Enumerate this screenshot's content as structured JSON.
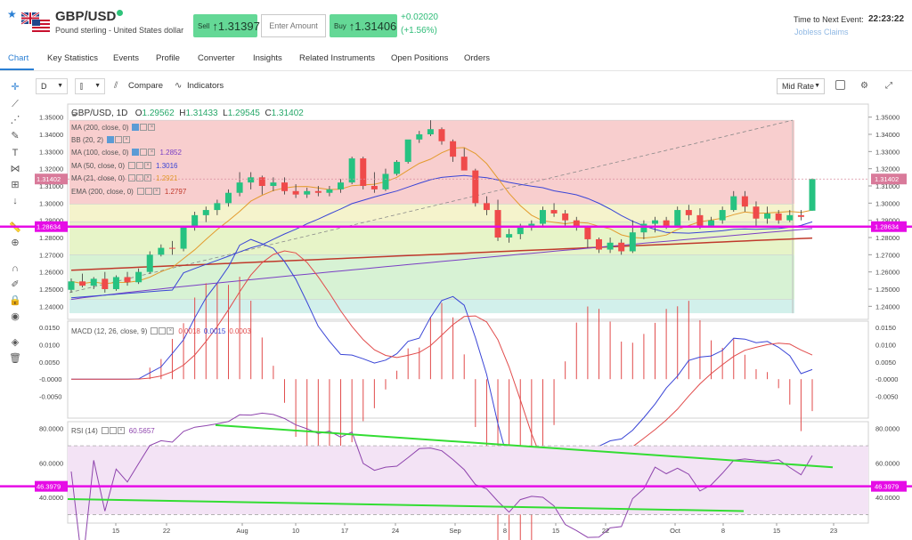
{
  "instrument": {
    "pair": "GBP/USD",
    "description": "Pound sterling - United States dollar",
    "sell_label": "Sell",
    "sell_price": "1.31397",
    "buy_label": "Buy",
    "buy_price": "1.31406",
    "amount_placeholder": "Enter Amount",
    "change_abs": "+0.02020",
    "change_pct": "(+1.56%)"
  },
  "event": {
    "label": "Time to Next Event:",
    "time": "22:23:22",
    "name": "Jobless Claims"
  },
  "tabs": [
    "Chart",
    "Key Statistics",
    "Events",
    "Profile",
    "Converter",
    "Insights",
    "Related Instruments",
    "Open Positions",
    "Orders"
  ],
  "toolbar": {
    "interval": "D",
    "compare_label": "Compare",
    "indicators_label": "Indicators",
    "price_type": "Mid Rate"
  },
  "price_pane": {
    "title": "GBP/USD, 1D",
    "open_label": "O",
    "open": "1.29562",
    "high_label": "H",
    "high": "1.31433",
    "low_label": "L",
    "low": "1.29545",
    "close_label": "C",
    "close": "1.31402",
    "last_price_label": "1.31402",
    "line_label": "1.28634",
    "indicators": [
      {
        "name": "MA (200, close, 0)",
        "value": ""
      },
      {
        "name": "BB (20, 2)",
        "value": ""
      },
      {
        "name": "MA (100, close, 0)",
        "value": "1.2852"
      },
      {
        "name": "MA (50, close, 0)",
        "value": "1.3016"
      },
      {
        "name": "MA (21, close, 0)",
        "value": "1.2921"
      },
      {
        "name": "EMA (200, close, 0)",
        "value": "1.2797"
      }
    ],
    "y_ticks": [
      "1.35000",
      "1.34000",
      "1.33000",
      "1.32000",
      "1.31000",
      "1.30000",
      "1.29000",
      "1.28000",
      "1.27000",
      "1.26000",
      "1.25000",
      "1.24000"
    ]
  },
  "macd_pane": {
    "name": "MACD (12, 26, close, 9)",
    "value1": "0.0018",
    "value2": "0.0015",
    "value3": "0.0003",
    "y_ticks": [
      "0.0150",
      "0.0100",
      "0.0050",
      "-0.0000",
      "-0.0050"
    ]
  },
  "rsi_pane": {
    "name": "RSI (14)",
    "value": "60.5657",
    "line_label": "46.3979",
    "y_ticks": [
      "80.0000",
      "60.0000",
      "40.0000"
    ]
  },
  "x_axis": [
    "15",
    "22",
    "Aug",
    "10",
    "17",
    "24",
    "Sep",
    "8",
    "15",
    "22",
    "Oct",
    "8",
    "15",
    "23"
  ],
  "colors": {
    "up": "#26c281",
    "down": "#ef4a4a",
    "accent": "#2a7fd4",
    "magenta": "#e60ce6",
    "trend": "#33dd33"
  },
  "chart_data": {
    "type": "candlestick",
    "candles": [
      [
        1.2496,
        1.2562,
        1.248,
        1.2545
      ],
      [
        1.2545,
        1.259,
        1.251,
        1.252
      ],
      [
        1.252,
        1.257,
        1.25,
        1.256
      ],
      [
        1.256,
        1.26,
        1.248,
        1.25
      ],
      [
        1.25,
        1.258,
        1.249,
        1.257
      ],
      [
        1.257,
        1.26,
        1.252,
        1.254
      ],
      [
        1.254,
        1.262,
        1.253,
        1.26
      ],
      [
        1.26,
        1.272,
        1.259,
        1.27
      ],
      [
        1.27,
        1.276,
        1.269,
        1.274
      ],
      [
        1.274,
        1.278,
        1.27,
        1.2735
      ],
      [
        1.2735,
        1.287,
        1.272,
        1.286
      ],
      [
        1.286,
        1.295,
        1.284,
        1.293
      ],
      [
        1.293,
        1.298,
        1.289,
        1.296
      ],
      [
        1.296,
        1.302,
        1.293,
        1.3
      ],
      [
        1.3,
        1.308,
        1.298,
        1.306
      ],
      [
        1.306,
        1.318,
        1.304,
        1.312
      ],
      [
        1.312,
        1.318,
        1.308,
        1.315
      ],
      [
        1.315,
        1.316,
        1.305,
        1.31
      ],
      [
        1.31,
        1.315,
        1.307,
        1.312
      ],
      [
        1.312,
        1.315,
        1.305,
        1.307
      ],
      [
        1.307,
        1.311,
        1.303,
        1.305
      ],
      [
        1.305,
        1.309,
        1.303,
        1.307
      ],
      [
        1.307,
        1.31,
        1.304,
        1.306
      ],
      [
        1.306,
        1.31,
        1.304,
        1.308
      ],
      [
        1.308,
        1.314,
        1.306,
        1.312
      ],
      [
        1.312,
        1.327,
        1.311,
        1.326
      ],
      [
        1.326,
        1.327,
        1.308,
        1.31
      ],
      [
        1.31,
        1.318,
        1.306,
        1.308
      ],
      [
        1.308,
        1.32,
        1.307,
        1.317
      ],
      [
        1.317,
        1.325,
        1.316,
        1.324
      ],
      [
        1.324,
        1.336,
        1.323,
        1.337
      ],
      [
        1.337,
        1.342,
        1.335,
        1.34
      ],
      [
        1.34,
        1.3482,
        1.339,
        1.343
      ],
      [
        1.343,
        1.344,
        1.334,
        1.336
      ],
      [
        1.336,
        1.337,
        1.324,
        1.327
      ],
      [
        1.327,
        1.332,
        1.32,
        1.319
      ],
      [
        1.319,
        1.32,
        1.298,
        1.3
      ],
      [
        1.3,
        1.304,
        1.293,
        1.296
      ],
      [
        1.296,
        1.302,
        1.278,
        1.28
      ],
      [
        1.28,
        1.285,
        1.277,
        1.282
      ],
      [
        1.282,
        1.288,
        1.279,
        1.286
      ],
      [
        1.286,
        1.29,
        1.284,
        1.288
      ],
      [
        1.288,
        1.298,
        1.287,
        1.296
      ],
      [
        1.296,
        1.3,
        1.292,
        1.294
      ],
      [
        1.294,
        1.296,
        1.287,
        1.29
      ],
      [
        1.29,
        1.292,
        1.284,
        1.286
      ],
      [
        1.286,
        1.287,
        1.274,
        1.279
      ],
      [
        1.279,
        1.28,
        1.271,
        1.273
      ],
      [
        1.273,
        1.28,
        1.271,
        1.277
      ],
      [
        1.277,
        1.279,
        1.27,
        1.272
      ],
      [
        1.272,
        1.29,
        1.271,
        1.283
      ],
      [
        1.283,
        1.29,
        1.279,
        1.288
      ],
      [
        1.288,
        1.292,
        1.283,
        1.29
      ],
      [
        1.29,
        1.292,
        1.285,
        1.287
      ],
      [
        1.287,
        1.298,
        1.286,
        1.296
      ],
      [
        1.296,
        1.299,
        1.29,
        1.293
      ],
      [
        1.293,
        1.297,
        1.285,
        1.287
      ],
      [
        1.287,
        1.292,
        1.286,
        1.29
      ],
      [
        1.29,
        1.298,
        1.288,
        1.296
      ],
      [
        1.296,
        1.307,
        1.295,
        1.304
      ],
      [
        1.304,
        1.307,
        1.295,
        1.298
      ],
      [
        1.298,
        1.301,
        1.286,
        1.291
      ],
      [
        1.291,
        1.298,
        1.288,
        1.294
      ],
      [
        1.294,
        1.296,
        1.288,
        1.29
      ],
      [
        1.29,
        1.296,
        1.289,
        1.293
      ],
      [
        1.293,
        1.296,
        1.29,
        1.292
      ],
      [
        1.2956,
        1.3143,
        1.2955,
        1.314
      ]
    ],
    "ylim": [
      1.235,
      1.355
    ]
  }
}
